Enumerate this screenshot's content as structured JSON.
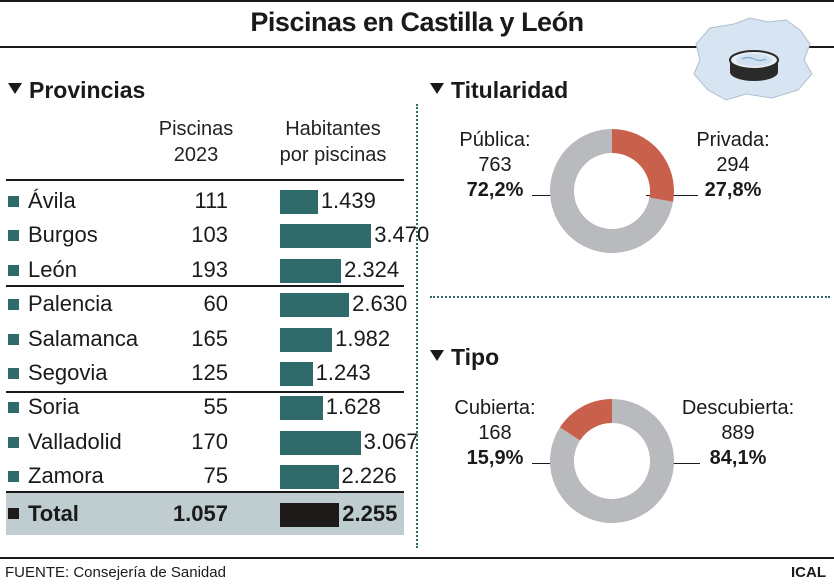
{
  "title": "Piscinas en Castilla y León",
  "source": "FUENTE: Consejería de Sanidad",
  "brand": "ICAL",
  "colors": {
    "teal": "#2e6b6a",
    "red": "#c8604c",
    "grey": "#b8babd",
    "total_bg": "#bfcdd1",
    "total_bar": "#1f1a1a"
  },
  "icon": "swimming-pool-on-map-icon",
  "provinces": {
    "heading": "Provincias",
    "col_count": [
      "Piscinas",
      "2023"
    ],
    "col_hab": [
      "Habitantes",
      "por piscinas"
    ]
  },
  "titularidad": {
    "heading": "Titularidad",
    "left": {
      "label": "Pública:",
      "value": "763",
      "pct": "72,2%"
    },
    "right": {
      "label": "Privada:",
      "value": "294",
      "pct": "27,8%"
    }
  },
  "tipo": {
    "heading": "Tipo",
    "left": {
      "label": "Cubierta:",
      "value": "168",
      "pct": "15,9%"
    },
    "right": {
      "label": "Descubierta:",
      "value": "889",
      "pct": "84,1%"
    }
  },
  "chart_data": [
    {
      "type": "bar",
      "categories": [
        "Ávila",
        "Burgos",
        "León",
        "Palencia",
        "Salamanca",
        "Segovia",
        "Soria",
        "Valladolid",
        "Zamora"
      ],
      "series": [
        {
          "name": "Piscinas 2023",
          "values": [
            "111",
            "103",
            "193",
            "60",
            "165",
            "125",
            "55",
            "170",
            "75"
          ]
        },
        {
          "name": "Habitantes por piscinas",
          "values": [
            "1.439",
            "3.470",
            "2.324",
            "2.630",
            "1.982",
            "1.243",
            "1.628",
            "3.067",
            "2.226"
          ]
        }
      ],
      "bar_values": [
        1439,
        3470,
        2324,
        2630,
        1982,
        1243,
        1628,
        3067,
        2226
      ],
      "total": {
        "label": "Total",
        "count": "1.057",
        "hab": "2.255",
        "bar_value": 2255
      },
      "xlim": [
        0,
        3500
      ]
    },
    {
      "type": "pie",
      "title": "Titularidad",
      "labels": [
        "Pública",
        "Privada"
      ],
      "values": [
        763,
        294
      ],
      "percent": [
        72.2,
        27.8
      ]
    },
    {
      "type": "pie",
      "title": "Tipo",
      "labels": [
        "Cubierta",
        "Descubierta"
      ],
      "values": [
        168,
        889
      ],
      "percent": [
        15.9,
        84.1
      ]
    }
  ]
}
